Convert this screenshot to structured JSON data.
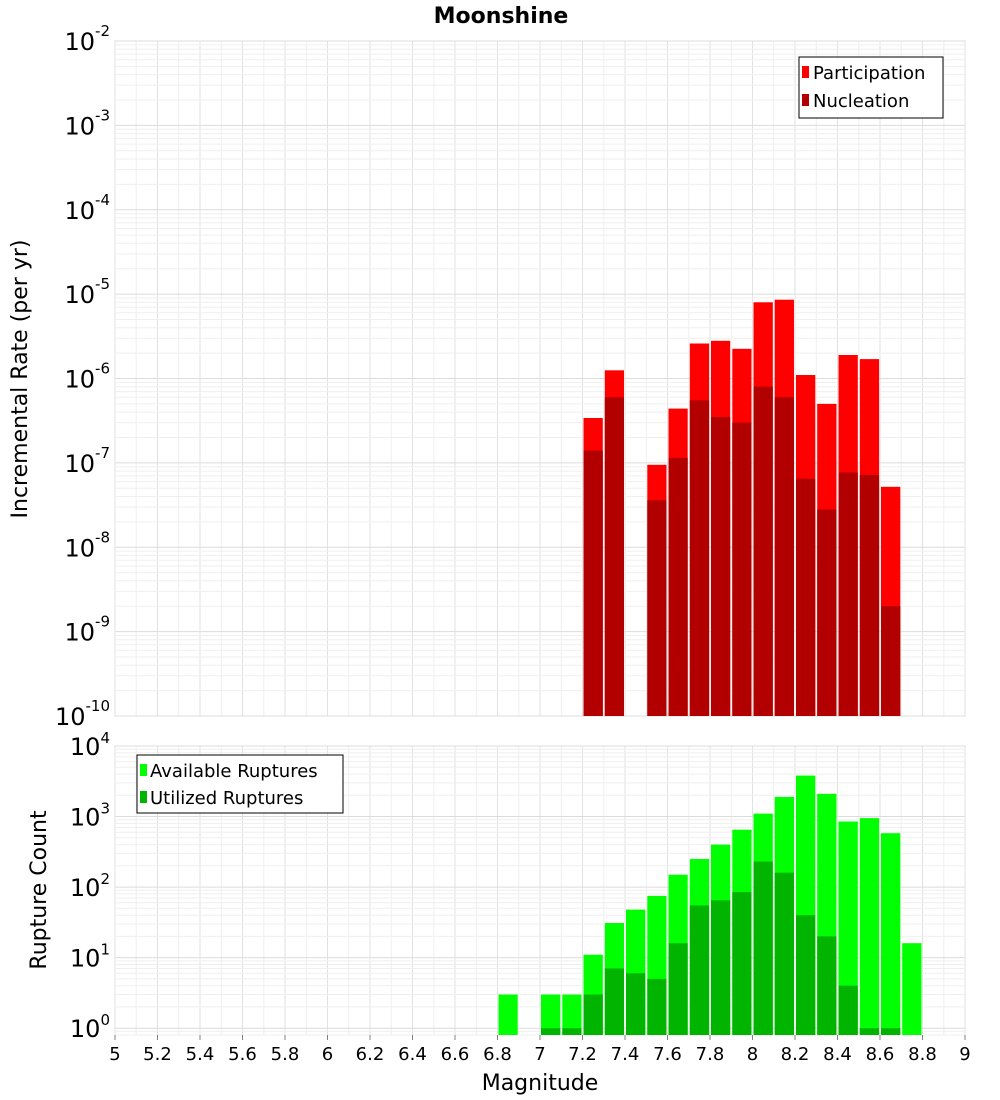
{
  "chart_data": [
    {
      "type": "bar",
      "title": "Moonshine",
      "ylabel": "Incremental Rate (per yr)",
      "xlabel": "",
      "yscale": "log",
      "ylim": [
        1e-10,
        0.01
      ],
      "xlim": [
        5,
        9
      ],
      "x": [
        7.25,
        7.35,
        7.55,
        7.65,
        7.75,
        7.85,
        7.95,
        8.05,
        8.15,
        8.25,
        8.35,
        8.45,
        8.55,
        8.65
      ],
      "bar_width": 0.1,
      "y_tick_labels": [
        {
          "base": "10",
          "exp": "-2"
        },
        {
          "base": "10",
          "exp": "-3"
        },
        {
          "base": "10",
          "exp": "-4"
        },
        {
          "base": "10",
          "exp": "-5"
        },
        {
          "base": "10",
          "exp": "-6"
        },
        {
          "base": "10",
          "exp": "-7"
        },
        {
          "base": "10",
          "exp": "-8"
        },
        {
          "base": "10",
          "exp": "-9"
        },
        {
          "base": "10",
          "exp": "-10"
        }
      ],
      "legend_position": "top-right",
      "series": [
        {
          "name": "Participation",
          "color": "#ff0000",
          "values": [
            3.4e-07,
            1.25e-06,
            9.5e-08,
            4.4e-07,
            2.6e-06,
            2.8e-06,
            2.25e-06,
            8e-06,
            8.6e-06,
            1.1e-06,
            5e-07,
            1.9e-06,
            1.7e-06,
            5.2e-08
          ]
        },
        {
          "name": "Nucleation",
          "color": "#b20000",
          "values": [
            1.4e-07,
            6e-07,
            3.6e-08,
            1.15e-07,
            5.5e-07,
            3.5e-07,
            3e-07,
            8e-07,
            6e-07,
            6.5e-08,
            2.8e-08,
            7.7e-08,
            7.2e-08,
            2e-09
          ]
        }
      ]
    },
    {
      "type": "bar",
      "title": "",
      "ylabel": "Rupture Count",
      "xlabel": "Magnitude",
      "yscale": "log",
      "ylim": [
        0.8,
        10000
      ],
      "xlim": [
        5,
        9
      ],
      "x": [
        6.85,
        7.05,
        7.15,
        7.25,
        7.35,
        7.45,
        7.55,
        7.65,
        7.75,
        7.85,
        7.95,
        8.05,
        8.15,
        8.25,
        8.35,
        8.45,
        8.55,
        8.65,
        8.75
      ],
      "bar_width": 0.1,
      "x_tick_labels": [
        "5",
        "5.2",
        "5.4",
        "5.6",
        "5.8",
        "6",
        "6.2",
        "6.4",
        "6.6",
        "6.8",
        "7",
        "7.2",
        "7.4",
        "7.6",
        "7.8",
        "8",
        "8.2",
        "8.4",
        "8.6",
        "8.8",
        "9"
      ],
      "y_tick_labels": [
        {
          "base": "10",
          "exp": "4"
        },
        {
          "base": "10",
          "exp": "3"
        },
        {
          "base": "10",
          "exp": "2"
        },
        {
          "base": "10",
          "exp": "1"
        },
        {
          "base": "10",
          "exp": "0"
        }
      ],
      "legend_position": "top-left",
      "series": [
        {
          "name": "Available Ruptures",
          "color": "#00ff00",
          "values": [
            3,
            3,
            3,
            11,
            31,
            48,
            75,
            150,
            250,
            400,
            650,
            1100,
            1900,
            3800,
            2100,
            850,
            950,
            580,
            16
          ]
        },
        {
          "name": "Utilized Ruptures",
          "color": "#00b400",
          "values": [
            0,
            1,
            1,
            3,
            7,
            6,
            5,
            16,
            55,
            65,
            85,
            230,
            160,
            40,
            20,
            4,
            1,
            1,
            0
          ]
        }
      ]
    }
  ]
}
